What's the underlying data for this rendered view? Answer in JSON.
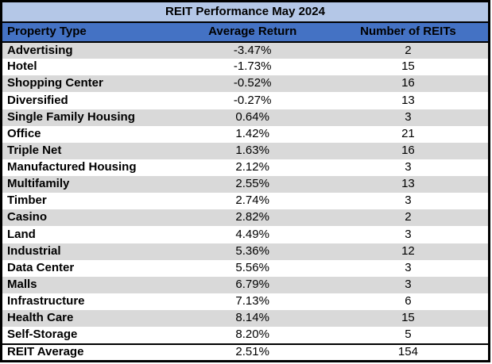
{
  "title": "REIT Performance May 2024",
  "columns": [
    "Property Type",
    "Average Return",
    "Number of REITs"
  ],
  "rows": [
    {
      "property": "Advertising",
      "avg_return": "-3.47%",
      "num_reits": "2"
    },
    {
      "property": "Hotel",
      "avg_return": "-1.73%",
      "num_reits": "15"
    },
    {
      "property": "Shopping Center",
      "avg_return": "-0.52%",
      "num_reits": "16"
    },
    {
      "property": "Diversified",
      "avg_return": "-0.27%",
      "num_reits": "13"
    },
    {
      "property": "Single Family Housing",
      "avg_return": "0.64%",
      "num_reits": "3"
    },
    {
      "property": "Office",
      "avg_return": "1.42%",
      "num_reits": "21"
    },
    {
      "property": "Triple Net",
      "avg_return": "1.63%",
      "num_reits": "16"
    },
    {
      "property": "Manufactured Housing",
      "avg_return": "2.12%",
      "num_reits": "3"
    },
    {
      "property": "Multifamily",
      "avg_return": "2.55%",
      "num_reits": "13"
    },
    {
      "property": "Timber",
      "avg_return": "2.74%",
      "num_reits": "3"
    },
    {
      "property": "Casino",
      "avg_return": "2.82%",
      "num_reits": "2"
    },
    {
      "property": "Land",
      "avg_return": "4.49%",
      "num_reits": "3"
    },
    {
      "property": "Industrial",
      "avg_return": "5.36%",
      "num_reits": "12"
    },
    {
      "property": "Data Center",
      "avg_return": "5.56%",
      "num_reits": "3"
    },
    {
      "property": "Malls",
      "avg_return": "6.79%",
      "num_reits": "3"
    },
    {
      "property": "Infrastructure",
      "avg_return": "7.13%",
      "num_reits": "6"
    },
    {
      "property": "Health Care",
      "avg_return": "8.14%",
      "num_reits": "15"
    },
    {
      "property": "Self-Storage",
      "avg_return": "8.20%",
      "num_reits": "5"
    }
  ],
  "footer": {
    "property": "REIT Average",
    "avg_return": "2.51%",
    "num_reits": "154"
  },
  "colors": {
    "title_bg": "#B4C7E7",
    "header_bg": "#4472C4",
    "row_alt_bg": "#D9D9D9",
    "row_bg": "#FFFFFF",
    "border": "#000000",
    "text": "#000000"
  },
  "chart_data": {
    "type": "table",
    "title": "REIT Performance May 2024",
    "columns": [
      "Property Type",
      "Average Return",
      "Number of REITs"
    ],
    "categories": [
      "Advertising",
      "Hotel",
      "Shopping Center",
      "Diversified",
      "Single Family Housing",
      "Office",
      "Triple Net",
      "Manufactured Housing",
      "Multifamily",
      "Timber",
      "Casino",
      "Land",
      "Industrial",
      "Data Center",
      "Malls",
      "Infrastructure",
      "Health Care",
      "Self-Storage"
    ],
    "series": [
      {
        "name": "Average Return (%)",
        "values": [
          -3.47,
          -1.73,
          -0.52,
          -0.27,
          0.64,
          1.42,
          1.63,
          2.12,
          2.55,
          2.74,
          2.82,
          4.49,
          5.36,
          5.56,
          6.79,
          7.13,
          8.14,
          8.2
        ]
      },
      {
        "name": "Number of REITs",
        "values": [
          2,
          15,
          16,
          13,
          3,
          21,
          16,
          3,
          13,
          3,
          2,
          3,
          12,
          3,
          3,
          6,
          15,
          5
        ]
      }
    ],
    "summary_row": {
      "label": "REIT Average",
      "average_return_pct": 2.51,
      "number_of_reits": 154
    }
  }
}
